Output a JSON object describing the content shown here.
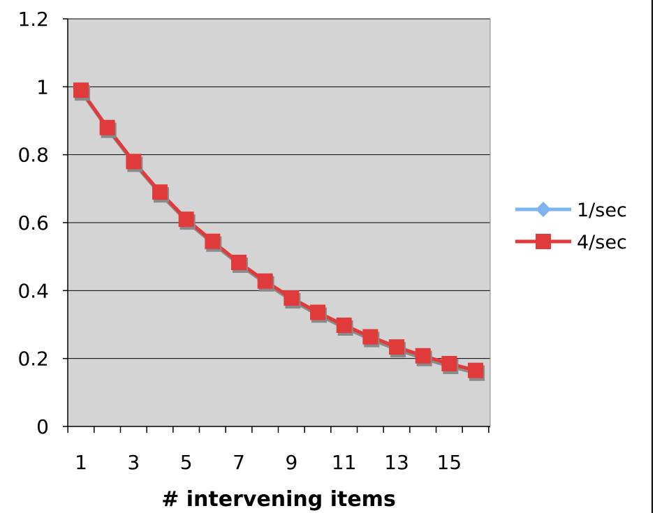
{
  "chart_data": {
    "type": "line",
    "title": "",
    "xlabel": "# intervening items",
    "ylabel": "",
    "x": [
      1,
      2,
      3,
      4,
      5,
      6,
      7,
      8,
      9,
      10,
      11,
      12,
      13,
      14,
      15,
      16
    ],
    "x_tick_labels": [
      "1",
      "3",
      "5",
      "7",
      "9",
      "11",
      "13",
      "15"
    ],
    "y_tick_labels": [
      "0",
      "0.2",
      "0.4",
      "0.6",
      "0.8",
      "1",
      "1.2"
    ],
    "ylim": [
      0,
      1.2
    ],
    "y_ticks": [
      0,
      0.2,
      0.4,
      0.6,
      0.8,
      1.0,
      1.2
    ],
    "grid": "horizontal",
    "plot_background": "#d4d4d4",
    "legend_position": "right",
    "series": [
      {
        "name": "1/sec",
        "color": "#7fb2f0",
        "marker": "diamond",
        "values": [
          0.99,
          0.88,
          0.78,
          0.69,
          0.61,
          0.545,
          0.483,
          0.428,
          0.378,
          0.336,
          0.298,
          0.264,
          0.234,
          0.208,
          0.185,
          0.165
        ]
      },
      {
        "name": "4/sec",
        "color": "#e03a3a",
        "marker": "square",
        "values": [
          0.99,
          0.88,
          0.78,
          0.69,
          0.61,
          0.545,
          0.483,
          0.428,
          0.378,
          0.336,
          0.298,
          0.264,
          0.234,
          0.208,
          0.185,
          0.165
        ]
      }
    ]
  }
}
